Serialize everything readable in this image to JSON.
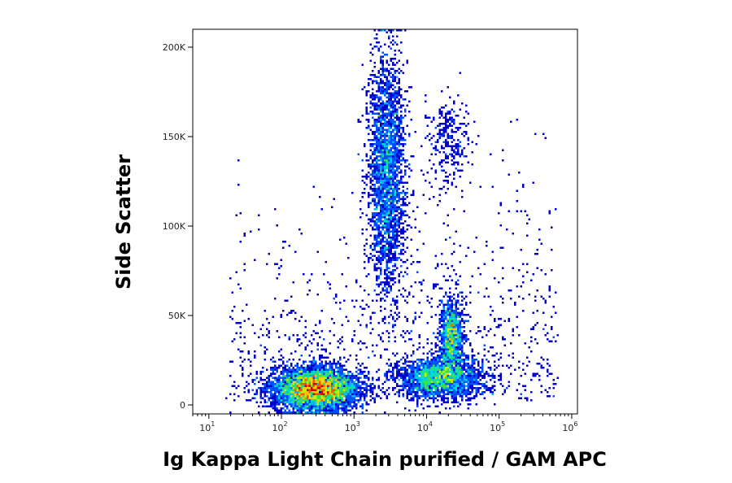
{
  "chart_data": {
    "type": "scatter",
    "subtype": "flow-cytometry-density-dot-plot",
    "xlabel": "Ig Kappa Light Chain purified / GAM APC",
    "ylabel": "Side Scatter",
    "x_scale": "log",
    "xlim": [
      6,
      1200000
    ],
    "ylim": [
      -5000,
      210000
    ],
    "x_ticks": [
      {
        "base": "10",
        "exp": "1",
        "value": 10
      },
      {
        "base": "10",
        "exp": "2",
        "value": 100
      },
      {
        "base": "10",
        "exp": "3",
        "value": 1000
      },
      {
        "base": "10",
        "exp": "4",
        "value": 10000
      },
      {
        "base": "10",
        "exp": "5",
        "value": 100000
      },
      {
        "base": "10",
        "exp": "6",
        "value": 1000000
      }
    ],
    "y_ticks": [
      {
        "label": "0",
        "value": 0
      },
      {
        "label": "50K",
        "value": 50000
      },
      {
        "label": "100K",
        "value": 100000
      },
      {
        "label": "150K",
        "value": 150000
      },
      {
        "label": "200K",
        "value": 200000
      }
    ],
    "grid": false,
    "legend": "none",
    "density_colors": [
      "#0000c8",
      "#0050ff",
      "#00b4ff",
      "#00e0c0",
      "#40e040",
      "#c8f000",
      "#ffc800",
      "#ff5000",
      "#c80000"
    ],
    "populations": [
      {
        "description": "low SSC, negative",
        "x_center": 300,
        "x_spread_decades": 0.3,
        "y_center": 9000,
        "y_spread": 6000,
        "relative_density": 1.0
      },
      {
        "description": "high SSC granulocyte cluster",
        "x_center": 2800,
        "x_spread_decades": 0.13,
        "y_center": 130000,
        "y_spread": 32000,
        "relative_density": 0.55
      },
      {
        "description": "low SSC, intermediate positive",
        "x_center": 15000,
        "x_spread_decades": 0.3,
        "y_center": 15000,
        "y_spread": 6000,
        "relative_density": 0.45
      },
      {
        "description": "mid SSC, kappa positive",
        "x_center": 22000,
        "x_spread_decades": 0.08,
        "y_center": 38000,
        "y_spread": 10000,
        "relative_density": 0.25
      },
      {
        "description": "high SSC, bright positive tail",
        "x_center": 20000,
        "x_spread_decades": 0.15,
        "y_center": 148000,
        "y_spread": 12000,
        "relative_density": 0.05
      }
    ]
  }
}
